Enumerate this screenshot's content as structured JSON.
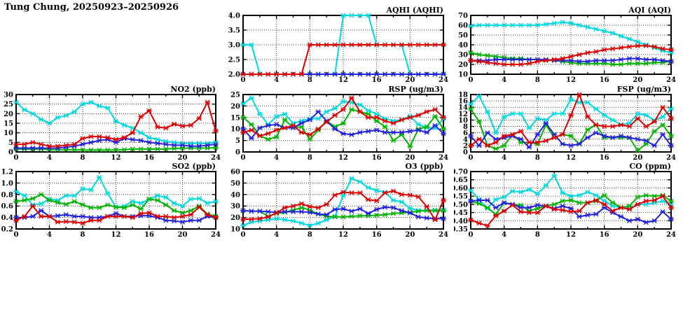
{
  "page_title": "Tung Chung, 20250923–20250926",
  "chart_data": [
    {
      "key": "aqhi",
      "type": "line",
      "title": "AQHI (AQHI)",
      "xlim": [
        0,
        24
      ],
      "xstep": 4,
      "ylim": [
        2.0,
        4.0
      ],
      "ystep": 0.5,
      "yfmt": 1,
      "grid": true,
      "legend": "none",
      "series": [
        {
          "name": "cyan",
          "color": "#00d9e0",
          "values": [
            3,
            3,
            2,
            2,
            2,
            2,
            2,
            2,
            2,
            2,
            2,
            2,
            4,
            4,
            4,
            4,
            3,
            3,
            3,
            3,
            2,
            2,
            2,
            2,
            2
          ]
        },
        {
          "name": "green",
          "color": "#00b400",
          "values": [
            2,
            2,
            2,
            2,
            2,
            2,
            2,
            2,
            2,
            2,
            2,
            2,
            2,
            2,
            2,
            2,
            2,
            2,
            2,
            2,
            2,
            2,
            2,
            2,
            2
          ]
        },
        {
          "name": "blue",
          "color": "#2222dd",
          "values": [
            2,
            2,
            2,
            2,
            2,
            2,
            2,
            2,
            2,
            2,
            2,
            2,
            2,
            2,
            2,
            2,
            2,
            2,
            2,
            2,
            2,
            2,
            2,
            2,
            2
          ]
        },
        {
          "name": "red",
          "color": "#dd0000",
          "values": [
            2,
            2,
            2,
            2,
            2,
            2,
            2,
            2,
            3,
            3,
            3,
            3,
            3,
            3,
            3,
            3,
            3,
            3,
            3,
            3,
            3,
            3,
            3,
            3,
            3
          ]
        }
      ]
    },
    {
      "key": "aqi",
      "type": "line",
      "title": "AQI (AQI)",
      "xlim": [
        0,
        24
      ],
      "xstep": 4,
      "ylim": [
        10,
        70
      ],
      "ystep": 10,
      "yfmt": 0,
      "grid": true,
      "legend": "none",
      "series": [
        {
          "name": "cyan",
          "color": "#00d9e0",
          "values": [
            59,
            60,
            60,
            60,
            60,
            60,
            60,
            60,
            60,
            61,
            62,
            63,
            62,
            60,
            58,
            56,
            54,
            52,
            49,
            46,
            43,
            40,
            37,
            34,
            32
          ]
        },
        {
          "name": "green",
          "color": "#00b400",
          "values": [
            32,
            30,
            29,
            28,
            27,
            26,
            26,
            25,
            25,
            24,
            24,
            23,
            22,
            21,
            21,
            21,
            21,
            20,
            20,
            21,
            21,
            21,
            22,
            22,
            23
          ]
        },
        {
          "name": "blue",
          "color": "#2222dd",
          "values": [
            24,
            24,
            24,
            25,
            25,
            25,
            25,
            25,
            25,
            25,
            24,
            24,
            24,
            23,
            23,
            24,
            24,
            24,
            25,
            26,
            26,
            25,
            25,
            24,
            23
          ]
        },
        {
          "name": "red",
          "color": "#dd0000",
          "values": [
            24,
            23,
            22,
            21,
            20,
            20,
            20,
            21,
            23,
            24,
            25,
            26,
            28,
            30,
            32,
            33,
            35,
            36,
            37,
            38,
            39,
            39,
            38,
            36,
            35
          ]
        }
      ]
    },
    {
      "key": "no2",
      "type": "line",
      "title": "NO2 (ppb)",
      "xlim": [
        0,
        24
      ],
      "xstep": 4,
      "ylim": [
        0,
        30
      ],
      "ystep": 5,
      "yfmt": 0,
      "grid": true,
      "legend": "none",
      "series": [
        {
          "name": "cyan",
          "color": "#00d9e0",
          "values": [
            26,
            22,
            20,
            17,
            15,
            18,
            19,
            21,
            25,
            26,
            24,
            23,
            16,
            14,
            12.5,
            10,
            7.5,
            6.5,
            5.5,
            5,
            4.5,
            4.5,
            4.5,
            4.5,
            5
          ]
        },
        {
          "name": "green",
          "color": "#00b400",
          "values": [
            1.5,
            1.5,
            1.5,
            1.5,
            1.2,
            1.2,
            1.2,
            1.2,
            1,
            1,
            1,
            1,
            1,
            1.2,
            1.5,
            1.5,
            1.5,
            1.5,
            1.5,
            1.8,
            2,
            2,
            2,
            2,
            2.2
          ]
        },
        {
          "name": "blue",
          "color": "#2222dd",
          "values": [
            2,
            2,
            2,
            2,
            2,
            2,
            2.5,
            3,
            4,
            5,
            6,
            6.5,
            5,
            7,
            6.5,
            6,
            5,
            4.5,
            4,
            3.5,
            3.5,
            3,
            3,
            3.5,
            4
          ]
        },
        {
          "name": "red",
          "color": "#dd0000",
          "values": [
            4,
            4,
            5,
            4,
            3,
            3,
            3.5,
            4,
            7,
            8,
            8,
            7.5,
            6.5,
            7.5,
            10,
            18.5,
            21.5,
            13,
            12.5,
            14.5,
            13.5,
            14,
            17.5,
            26,
            11
          ]
        }
      ]
    },
    {
      "key": "rsp",
      "type": "line",
      "title": "RSP (ug/m3)",
      "xlim": [
        0,
        24
      ],
      "xstep": 4,
      "ylim": [
        0,
        25
      ],
      "ystep": 5,
      "yfmt": 0,
      "grid": true,
      "legend": "none",
      "series": [
        {
          "name": "cyan",
          "color": "#00d9e0",
          "values": [
            21,
            23.5,
            16.5,
            12,
            15.5,
            16.5,
            12.5,
            13.5,
            14.5,
            14.5,
            17.5,
            19,
            22,
            21.5,
            20.5,
            18,
            16.5,
            14.5,
            13.5,
            14,
            15.5,
            12,
            10.5,
            10.5,
            14.5
          ]
        },
        {
          "name": "green",
          "color": "#00b400",
          "values": [
            15,
            12,
            7,
            5.5,
            6.5,
            14,
            10.5,
            11,
            5.5,
            9.5,
            13.5,
            11,
            12.5,
            18.5,
            17.5,
            16.5,
            13.5,
            11,
            5,
            7.5,
            2.5,
            10,
            11,
            15.5,
            10
          ]
        },
        {
          "name": "blue",
          "color": "#2222dd",
          "values": [
            10,
            6,
            10.5,
            11.5,
            12,
            10.5,
            10.5,
            12.5,
            14,
            17.5,
            13.5,
            10,
            8,
            7.5,
            8.5,
            9,
            9.5,
            8.5,
            8.5,
            8.5,
            9,
            9.5,
            8.5,
            11.5,
            8
          ]
        },
        {
          "name": "red",
          "color": "#dd0000",
          "values": [
            8.5,
            9.5,
            7,
            8,
            9.5,
            10.5,
            11.5,
            8.5,
            7.5,
            10,
            13,
            16,
            18.5,
            23.5,
            17.5,
            15,
            15,
            13.5,
            12.5,
            14,
            15,
            16,
            17.5,
            18.5,
            15
          ]
        }
      ]
    },
    {
      "key": "fsp",
      "type": "line",
      "title": "FSP (ug/m3)",
      "xlim": [
        0,
        24
      ],
      "xstep": 4,
      "ylim": [
        0,
        18
      ],
      "ystep": 2,
      "yfmt": 0,
      "grid": true,
      "legend": "none",
      "series": [
        {
          "name": "cyan",
          "color": "#00d9e0",
          "values": [
            15,
            17.5,
            12.5,
            6,
            11,
            12,
            12,
            7.5,
            10.5,
            10,
            12,
            12,
            16.5,
            15.5,
            15.5,
            13.5,
            11.5,
            10,
            8.5,
            9,
            12,
            11.5,
            10,
            11,
            13.5
          ]
        },
        {
          "name": "green",
          "color": "#00b400",
          "values": [
            13.5,
            9.5,
            2,
            1,
            2,
            5.5,
            3,
            3,
            2.5,
            8.5,
            4.5,
            5.5,
            5,
            2.5,
            7,
            8.5,
            4.5,
            4.5,
            4.5,
            4.5,
            0.5,
            2.5,
            6.5,
            8.5,
            5
          ]
        },
        {
          "name": "blue",
          "color": "#2222dd",
          "values": [
            5,
            2,
            6,
            4,
            4.5,
            5,
            4,
            1.5,
            5.5,
            9,
            5.5,
            2.5,
            2,
            2.5,
            4.5,
            6,
            5,
            4.5,
            5,
            4.5,
            4,
            3.5,
            2,
            5.5,
            2
          ]
        },
        {
          "name": "red",
          "color": "#dd0000",
          "values": [
            2,
            4,
            2,
            3,
            5,
            5.5,
            6.5,
            3,
            3,
            3.5,
            4.5,
            5.5,
            11.5,
            18,
            11,
            8.5,
            8,
            8,
            8.5,
            8,
            10.5,
            8,
            9.5,
            14,
            10.5
          ]
        }
      ]
    },
    {
      "key": "so2",
      "type": "line",
      "title": "SO2 (ppb)",
      "xlim": [
        0,
        24
      ],
      "xstep": 4,
      "ylim": [
        0.2,
        1.2
      ],
      "ystep": 0.2,
      "yfmt": 1,
      "grid": true,
      "legend": "none",
      "series": [
        {
          "name": "cyan",
          "color": "#00d9e0",
          "values": [
            0.85,
            0.78,
            0.62,
            0.64,
            0.72,
            0.7,
            0.78,
            0.78,
            0.9,
            0.88,
            1.1,
            0.82,
            0.58,
            0.6,
            0.68,
            0.65,
            0.72,
            0.78,
            0.75,
            0.65,
            0.6,
            0.72,
            0.73,
            0.65,
            0.68
          ]
        },
        {
          "name": "green",
          "color": "#00b400",
          "values": [
            0.68,
            0.7,
            0.73,
            0.8,
            0.7,
            0.66,
            0.63,
            0.68,
            0.62,
            0.57,
            0.57,
            0.62,
            0.58,
            0.57,
            0.62,
            0.55,
            0.72,
            0.7,
            0.62,
            0.52,
            0.48,
            0.52,
            0.6,
            0.46,
            0.42
          ]
        },
        {
          "name": "blue",
          "color": "#2222dd",
          "values": [
            0.4,
            0.4,
            0.42,
            0.52,
            0.42,
            0.43,
            0.45,
            0.42,
            0.42,
            0.4,
            0.4,
            0.42,
            0.47,
            0.42,
            0.42,
            0.43,
            0.43,
            0.4,
            0.35,
            0.34,
            0.32,
            0.35,
            0.35,
            0.42,
            0.4
          ]
        },
        {
          "name": "red",
          "color": "#dd0000",
          "values": [
            0.35,
            0.42,
            0.6,
            0.42,
            0.42,
            0.32,
            0.33,
            0.32,
            0.3,
            0.35,
            0.35,
            0.42,
            0.42,
            0.42,
            0.4,
            0.47,
            0.48,
            0.42,
            0.42,
            0.4,
            0.42,
            0.45,
            0.58,
            0.45,
            0.4
          ]
        }
      ]
    },
    {
      "key": "o3",
      "type": "line",
      "title": "O3 (ppb)",
      "xlim": [
        0,
        24
      ],
      "xstep": 4,
      "ylim": [
        10,
        60
      ],
      "ystep": 10,
      "yfmt": 0,
      "grid": true,
      "legend": "none",
      "series": [
        {
          "name": "cyan",
          "color": "#00d9e0",
          "values": [
            13,
            16,
            17,
            18,
            19,
            18,
            17,
            15,
            13,
            15,
            18,
            21,
            39,
            54,
            51,
            46,
            43.5,
            42,
            35,
            33.5,
            28,
            26,
            26.5,
            26.5,
            26.5
          ]
        },
        {
          "name": "green",
          "color": "#00b400",
          "values": [
            26,
            25.5,
            25.5,
            21,
            23.5,
            24.5,
            26.5,
            28.5,
            26.5,
            23,
            21,
            20.5,
            20.5,
            21,
            21.5,
            21.5,
            22,
            22.5,
            23.5,
            24,
            24.5,
            25.5,
            26,
            26,
            26
          ]
        },
        {
          "name": "blue",
          "color": "#2222dd",
          "values": [
            26,
            25.5,
            25.5,
            25,
            24.5,
            25,
            25,
            25,
            24.5,
            23,
            22.5,
            27,
            27.5,
            25.5,
            27.5,
            23.5,
            27,
            29,
            28.5,
            26,
            24,
            20.5,
            19.5,
            19,
            19
          ]
        },
        {
          "name": "red",
          "color": "#dd0000",
          "values": [
            18.5,
            18.5,
            19,
            20.5,
            24,
            28.5,
            30,
            32,
            29.5,
            28.5,
            31.5,
            39.5,
            42,
            41.5,
            41.5,
            35.5,
            34.5,
            41.5,
            43,
            40,
            39.5,
            38,
            29.5,
            18,
            35
          ]
        }
      ]
    },
    {
      "key": "co",
      "type": "line",
      "title": "CO (ppm)",
      "xlim": [
        0,
        24
      ],
      "xstep": 4,
      "ylim": [
        0.35,
        0.7
      ],
      "ystep": 0.05,
      "yfmt": 2,
      "grid": true,
      "legend": "none",
      "series": [
        {
          "name": "cyan",
          "color": "#00d9e0",
          "values": [
            0.585,
            0.53,
            0.475,
            0.53,
            0.545,
            0.58,
            0.575,
            0.59,
            0.565,
            0.615,
            0.675,
            0.57,
            0.55,
            0.555,
            0.575,
            0.555,
            0.52,
            0.49,
            0.48,
            0.475,
            0.5,
            0.5,
            0.51,
            0.52,
            0.5
          ]
        },
        {
          "name": "green",
          "color": "#00b400",
          "values": [
            0.52,
            0.505,
            0.48,
            0.44,
            0.51,
            0.5,
            0.495,
            0.46,
            0.475,
            0.49,
            0.5,
            0.52,
            0.525,
            0.51,
            0.51,
            0.52,
            0.555,
            0.51,
            0.48,
            0.49,
            0.545,
            0.555,
            0.55,
            0.555,
            0.52
          ]
        },
        {
          "name": "blue",
          "color": "#2222dd",
          "values": [
            0.52,
            0.525,
            0.525,
            0.48,
            0.51,
            0.5,
            0.48,
            0.48,
            0.495,
            0.49,
            0.475,
            0.49,
            0.475,
            0.425,
            0.435,
            0.44,
            0.48,
            0.45,
            0.425,
            0.4,
            0.41,
            0.39,
            0.4,
            0.455,
            0.41
          ]
        },
        {
          "name": "red",
          "color": "#dd0000",
          "values": [
            0.405,
            0.385,
            0.37,
            0.43,
            0.46,
            0.495,
            0.455,
            0.45,
            0.45,
            0.49,
            0.47,
            0.465,
            0.455,
            0.46,
            0.51,
            0.525,
            0.5,
            0.46,
            0.48,
            0.47,
            0.5,
            0.52,
            0.525,
            0.55,
            0.48
          ]
        }
      ]
    }
  ]
}
